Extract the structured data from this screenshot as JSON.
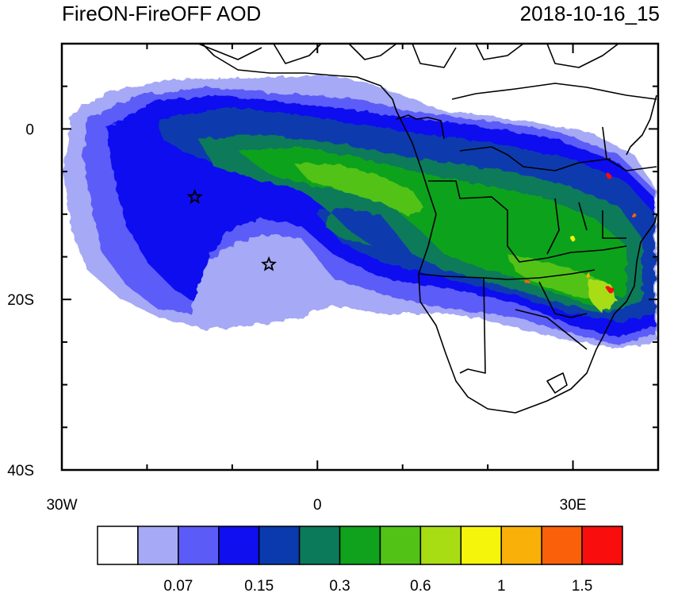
{
  "title": "FireON-FireOFF AOD",
  "timestamp": "2018-10-16_15",
  "map": {
    "lon_range": [
      -30,
      40
    ],
    "lat_range": [
      -40,
      10
    ],
    "x_ticks": [
      {
        "value": -30,
        "label": "30W"
      },
      {
        "value": 0,
        "label": "0"
      },
      {
        "value": 30,
        "label": "30E"
      }
    ],
    "y_ticks": [
      {
        "value": 0,
        "label": "0"
      },
      {
        "value": -20,
        "label": "20S"
      },
      {
        "value": -40,
        "label": "40S"
      }
    ],
    "markers": [
      {
        "name": "star",
        "lon": -14.4,
        "lat": -8.0
      },
      {
        "name": "star",
        "lon": -5.7,
        "lat": -15.9
      }
    ]
  },
  "colorbar": {
    "colors": [
      "#ffffff",
      "#a6a9f5",
      "#5b5bf8",
      "#0f0ff0",
      "#0a3aae",
      "#0b7a5a",
      "#10a21c",
      "#52c216",
      "#a8dd14",
      "#f5f50b",
      "#f9b008",
      "#fa6009",
      "#f90d0d"
    ],
    "labels": [
      {
        "boundary": 2,
        "text": "0.07"
      },
      {
        "boundary": 4,
        "text": "0.15"
      },
      {
        "boundary": 6,
        "text": "0.3"
      },
      {
        "boundary": 8,
        "text": "0.6"
      },
      {
        "boundary": 10,
        "text": "1"
      },
      {
        "boundary": 12,
        "text": "1.5"
      }
    ]
  }
}
